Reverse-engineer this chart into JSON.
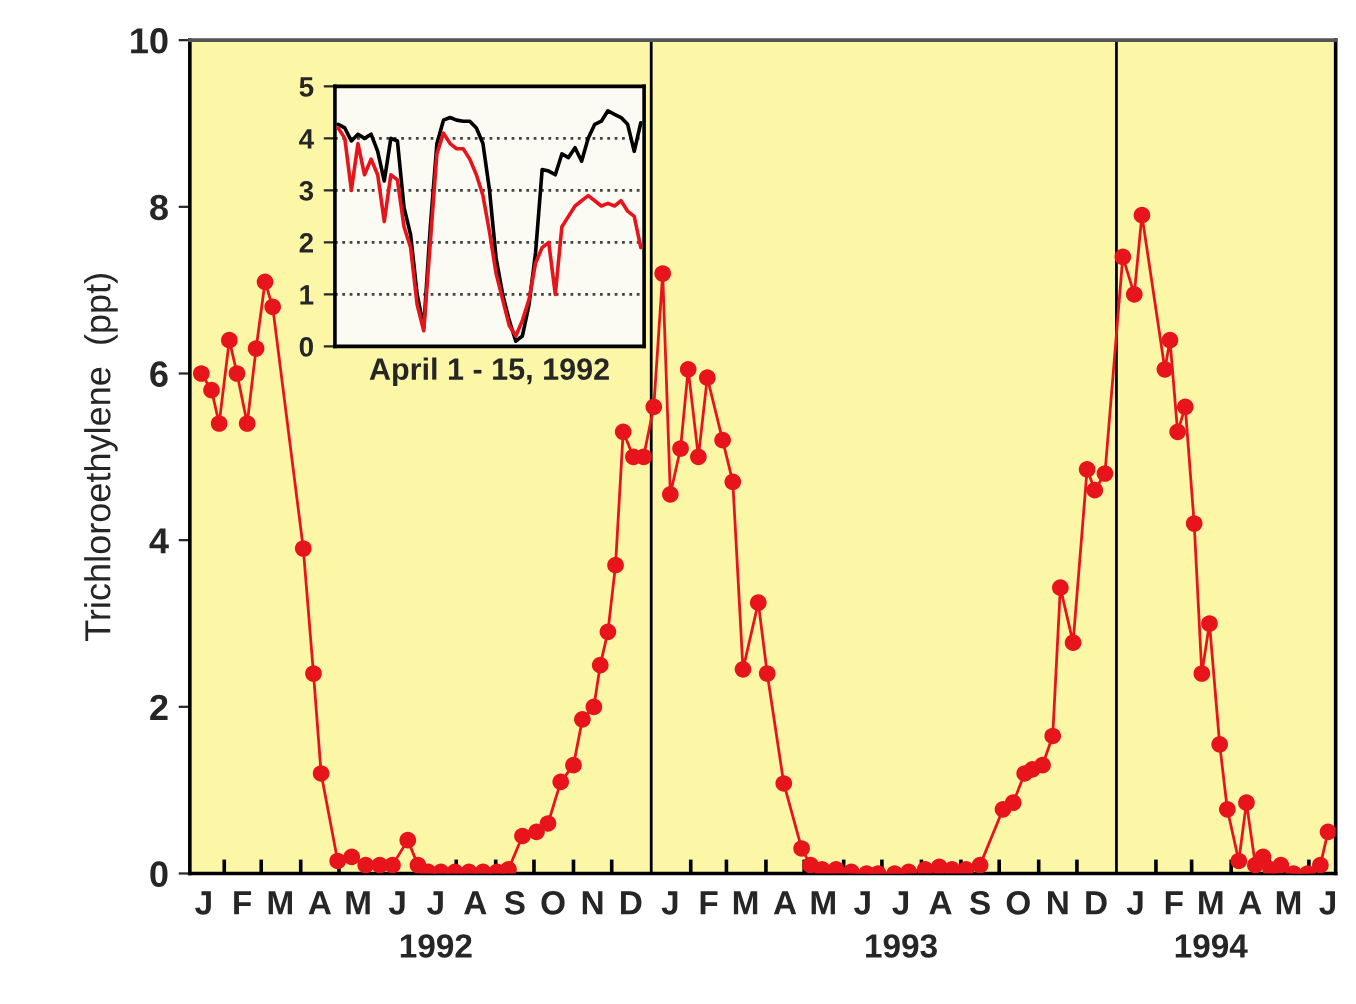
{
  "chart_data": [
    {
      "type": "line",
      "ylabel": "Trichloroethylene  (ppt)",
      "x": [
        "1992-01-14",
        "1992-01-22",
        "1992-01-28",
        "1992-02-05",
        "1992-02-11",
        "1992-02-19",
        "1992-02-26",
        "1992-03-04",
        "1992-03-10",
        "1992-04-03",
        "1992-04-11",
        "1992-04-17",
        "1992-04-30",
        "1992-05-11",
        "1992-05-22",
        "1992-06-02",
        "1992-06-12",
        "1992-06-24",
        "1992-07-02",
        "1992-07-10",
        "1992-07-20",
        "1992-07-31",
        "1992-08-11",
        "1992-08-22",
        "1992-09-02",
        "1992-09-11",
        "1992-09-22",
        "1992-10-03",
        "1992-10-12",
        "1992-10-22",
        "1992-11-01",
        "1992-11-08",
        "1992-11-17",
        "1992-11-22",
        "1992-11-28",
        "1992-12-04",
        "1992-12-10",
        "1992-12-18",
        "1992-12-26",
        "1993-01-03",
        "1993-01-10",
        "1993-01-16",
        "1993-01-24",
        "1993-01-30",
        "1993-02-07",
        "1993-02-14",
        "1993-02-26",
        "1993-03-06",
        "1993-03-14",
        "1993-03-26",
        "1993-04-02",
        "1993-04-15",
        "1993-04-29",
        "1993-05-06",
        "1993-05-15",
        "1993-05-26",
        "1993-06-07",
        "1993-06-19",
        "1993-06-28",
        "1993-07-11",
        "1993-07-22",
        "1993-08-04",
        "1993-08-15",
        "1993-08-25",
        "1993-09-05",
        "1993-09-16",
        "1993-10-04",
        "1993-10-12",
        "1993-10-21",
        "1993-10-27",
        "1993-11-04",
        "1993-11-12",
        "1993-11-18",
        "1993-11-28",
        "1993-12-09",
        "1993-12-15",
        "1993-12-23",
        "1994-01-06",
        "1994-01-15",
        "1994-01-21",
        "1994-02-08",
        "1994-02-12",
        "1994-02-18",
        "1994-02-24",
        "1994-03-03",
        "1994-03-09",
        "1994-03-15",
        "1994-03-23",
        "1994-03-29",
        "1994-04-07",
        "1994-04-13",
        "1994-04-20",
        "1994-04-26",
        "1994-05-02",
        "1994-05-10",
        "1994-05-20",
        "1994-05-31",
        "1994-06-10",
        "1994-06-16"
      ],
      "series": [
        {
          "color": "#e8141c",
          "values": [
            6.0,
            5.8,
            5.4,
            6.4,
            6.0,
            5.4,
            6.3,
            7.1,
            6.8,
            3.9,
            2.4,
            1.2,
            0.15,
            0.2,
            0.1,
            0.1,
            0.1,
            0.4,
            0.1,
            0.02,
            0.02,
            0.02,
            0.02,
            0.02,
            0.02,
            0.05,
            0.45,
            0.5,
            0.6,
            1.1,
            1.3,
            1.85,
            2.0,
            2.5,
            2.9,
            3.7,
            5.3,
            5.0,
            5.0,
            5.6,
            7.2,
            4.55,
            5.1,
            6.05,
            5.0,
            5.95,
            5.2,
            4.7,
            2.45,
            3.25,
            2.4,
            1.08,
            0.3,
            0.1,
            0.05,
            0.05,
            0.02,
            0,
            0,
            0,
            0.02,
            0.05,
            0.08,
            0.05,
            0.05,
            0.1,
            0.77,
            0.85,
            1.2,
            1.25,
            1.3,
            1.65,
            3.43,
            2.77,
            4.85,
            4.6,
            4.8,
            7.4,
            6.95,
            7.9,
            6.05,
            6.4,
            5.3,
            5.6,
            4.2,
            2.4,
            3.0,
            1.55,
            0.77,
            0.15,
            0.85,
            0.1,
            0.2,
            0.05,
            0.1,
            0,
            0,
            0.1,
            0.5
          ]
        }
      ],
      "marker": "circle",
      "line_style": "solid",
      "xlim": [
        "1992-01-05",
        "1994-06-22"
      ],
      "ylim": [
        0,
        10
      ],
      "yticks": [
        0,
        2,
        4,
        6,
        8,
        10
      ],
      "xticks": [
        {
          "value": "1992-01-16",
          "label": "J"
        },
        {
          "value": "1992-02-15",
          "label": "F"
        },
        {
          "value": "1992-03-16",
          "label": "M"
        },
        {
          "value": "1992-04-16",
          "label": "A"
        },
        {
          "value": "1992-05-16",
          "label": "M"
        },
        {
          "value": "1992-06-16",
          "label": "J"
        },
        {
          "value": "1992-07-16",
          "label": "J\n1992"
        },
        {
          "value": "1992-08-16",
          "label": "A"
        },
        {
          "value": "1992-09-16",
          "label": "S"
        },
        {
          "value": "1992-10-16",
          "label": "O"
        },
        {
          "value": "1992-11-16",
          "label": "N"
        },
        {
          "value": "1992-12-16",
          "label": "D"
        },
        {
          "value": "1993-01-16",
          "label": "J"
        },
        {
          "value": "1993-02-15",
          "label": "F"
        },
        {
          "value": "1993-03-16",
          "label": "M"
        },
        {
          "value": "1993-04-16",
          "label": "A"
        },
        {
          "value": "1993-05-16",
          "label": "M"
        },
        {
          "value": "1993-06-16",
          "label": "J"
        },
        {
          "value": "1993-07-16",
          "label": "J\n1993"
        },
        {
          "value": "1993-08-16",
          "label": "A"
        },
        {
          "value": "1993-09-16",
          "label": "S"
        },
        {
          "value": "1993-10-16",
          "label": "O"
        },
        {
          "value": "1993-11-16",
          "label": "N"
        },
        {
          "value": "1993-12-16",
          "label": "D"
        },
        {
          "value": "1994-01-16",
          "label": "J"
        },
        {
          "value": "1994-02-15",
          "label": "F"
        },
        {
          "value": "1994-03-16",
          "label": "M\n1994"
        },
        {
          "value": "1994-04-16",
          "label": "A"
        },
        {
          "value": "1994-05-16",
          "label": "M"
        },
        {
          "value": "1994-06-16",
          "label": "J"
        },
        {
          "value": "1992-02-01",
          "label": null
        },
        {
          "value": "1992-03-01",
          "label": null
        },
        {
          "value": "1992-04-01",
          "label": null
        },
        {
          "value": "1992-05-01",
          "label": null
        },
        {
          "value": "1992-06-01",
          "label": null
        },
        {
          "value": "1992-07-01",
          "label": null
        },
        {
          "value": "1992-08-01",
          "label": null
        },
        {
          "value": "1992-09-01",
          "label": null
        },
        {
          "value": "1992-10-01",
          "label": null
        },
        {
          "value": "1992-11-01",
          "label": null
        },
        {
          "value": "1992-12-01",
          "label": null
        },
        {
          "value": "1993-02-01",
          "label": null
        },
        {
          "value": "1993-03-01",
          "label": null
        },
        {
          "value": "1993-04-01",
          "label": null
        },
        {
          "value": "1993-05-01",
          "label": null
        },
        {
          "value": "1993-06-01",
          "label": null
        },
        {
          "value": "1993-07-01",
          "label": null
        },
        {
          "value": "1993-08-01",
          "label": null
        },
        {
          "value": "1993-09-01",
          "label": null
        },
        {
          "value": "1993-10-01",
          "label": null
        },
        {
          "value": "1993-11-01",
          "label": null
        },
        {
          "value": "1993-12-01",
          "label": null
        },
        {
          "value": "1994-02-01",
          "label": null
        },
        {
          "value": "1994-03-01",
          "label": null
        },
        {
          "value": "1994-04-01",
          "label": null
        },
        {
          "value": "1994-05-01",
          "label": null
        },
        {
          "value": "1994-06-01",
          "label": null
        }
      ],
      "ref_lines": [
        {
          "axis": "x",
          "value": "1993-01-01",
          "color": "#000000"
        },
        {
          "axis": "x",
          "value": "1994-01-01",
          "color": "#000000"
        }
      ],
      "grid": false,
      "legend": false
    },
    {
      "type": "line",
      "xlabel": "April 1 - 15, 1992",
      "categories": [
        null,
        null,
        null,
        null,
        null,
        null,
        null,
        null,
        null,
        null,
        null,
        null,
        null,
        null,
        null,
        null,
        null,
        null,
        null,
        null,
        null,
        null,
        null,
        null,
        null,
        null,
        null,
        null,
        null,
        null,
        null,
        null,
        null,
        null,
        null,
        null,
        null,
        null,
        null,
        null,
        null,
        null,
        null,
        null,
        null,
        null,
        null
      ],
      "series": [
        {
          "color": "#000000",
          "values": [
            4.27,
            4.2,
            3.95,
            4.08,
            4.0,
            4.08,
            3.75,
            3.18,
            4.0,
            3.95,
            2.67,
            2.15,
            1.0,
            0.36,
            2.3,
            3.9,
            4.35,
            4.4,
            4.35,
            4.33,
            4.33,
            4.2,
            3.9,
            3.0,
            1.7,
            1.0,
            0.5,
            0.1,
            0.2,
            0.8,
            1.8,
            3.4,
            3.37,
            3.3,
            3.7,
            3.63,
            3.82,
            3.56,
            4.0,
            4.27,
            4.33,
            4.53,
            4.46,
            4.4,
            4.27,
            3.75,
            4.3
          ]
        },
        {
          "color": "#e8141c",
          "values": [
            4.2,
            4.0,
            3.0,
            3.9,
            3.3,
            3.6,
            3.3,
            2.4,
            3.3,
            3.2,
            2.3,
            1.9,
            0.8,
            0.3,
            2.0,
            3.7,
            4.1,
            3.9,
            3.8,
            3.8,
            3.6,
            3.3,
            2.9,
            2.2,
            1.4,
            0.9,
            0.4,
            0.2,
            0.5,
            0.9,
            1.6,
            1.9,
            2.0,
            1.0,
            2.3,
            2.5,
            2.7,
            2.8,
            2.9,
            2.8,
            2.7,
            2.75,
            2.7,
            2.8,
            2.6,
            2.5,
            1.9
          ]
        }
      ],
      "ylim": [
        0,
        5
      ],
      "yticks": [
        0,
        1,
        2,
        3,
        4,
        5
      ],
      "grid": "y",
      "tick_labels": "y",
      "legend": false
    }
  ]
}
